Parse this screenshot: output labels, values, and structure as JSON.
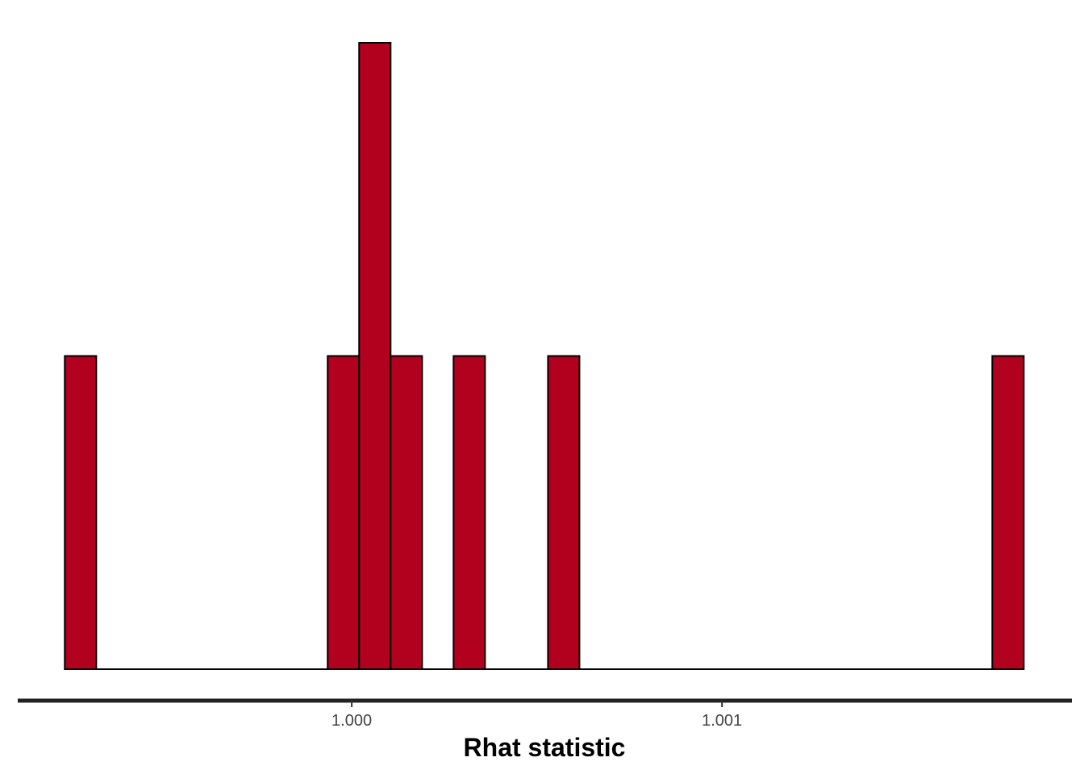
{
  "chart_data": {
    "type": "bar",
    "title": "",
    "xlabel": "Rhat statistic",
    "ylabel": "",
    "bins": [
      {
        "x0": 0.999225,
        "x1": 0.99931,
        "count": 1
      },
      {
        "x0": 0.999935,
        "x1": 1.00002,
        "count": 1
      },
      {
        "x0": 1.00002,
        "x1": 1.000105,
        "count": 2
      },
      {
        "x0": 1.000105,
        "x1": 1.00019,
        "count": 1
      },
      {
        "x0": 1.000275,
        "x1": 1.00036,
        "count": 1
      },
      {
        "x0": 1.00053,
        "x1": 1.000615,
        "count": 1
      },
      {
        "x0": 1.00173,
        "x1": 1.001815,
        "count": 1
      }
    ],
    "xlim": [
      0.999098,
      1.001945
    ],
    "ylim": [
      0,
      2
    ],
    "x_ticks": [
      {
        "value": 1.0,
        "label": "1.000"
      },
      {
        "value": 1.001,
        "label": "1.001"
      }
    ],
    "y_axis_visible": false,
    "grid": false,
    "legend": "none",
    "bar_color": "#b2001f",
    "bar_outline": "#000000"
  }
}
